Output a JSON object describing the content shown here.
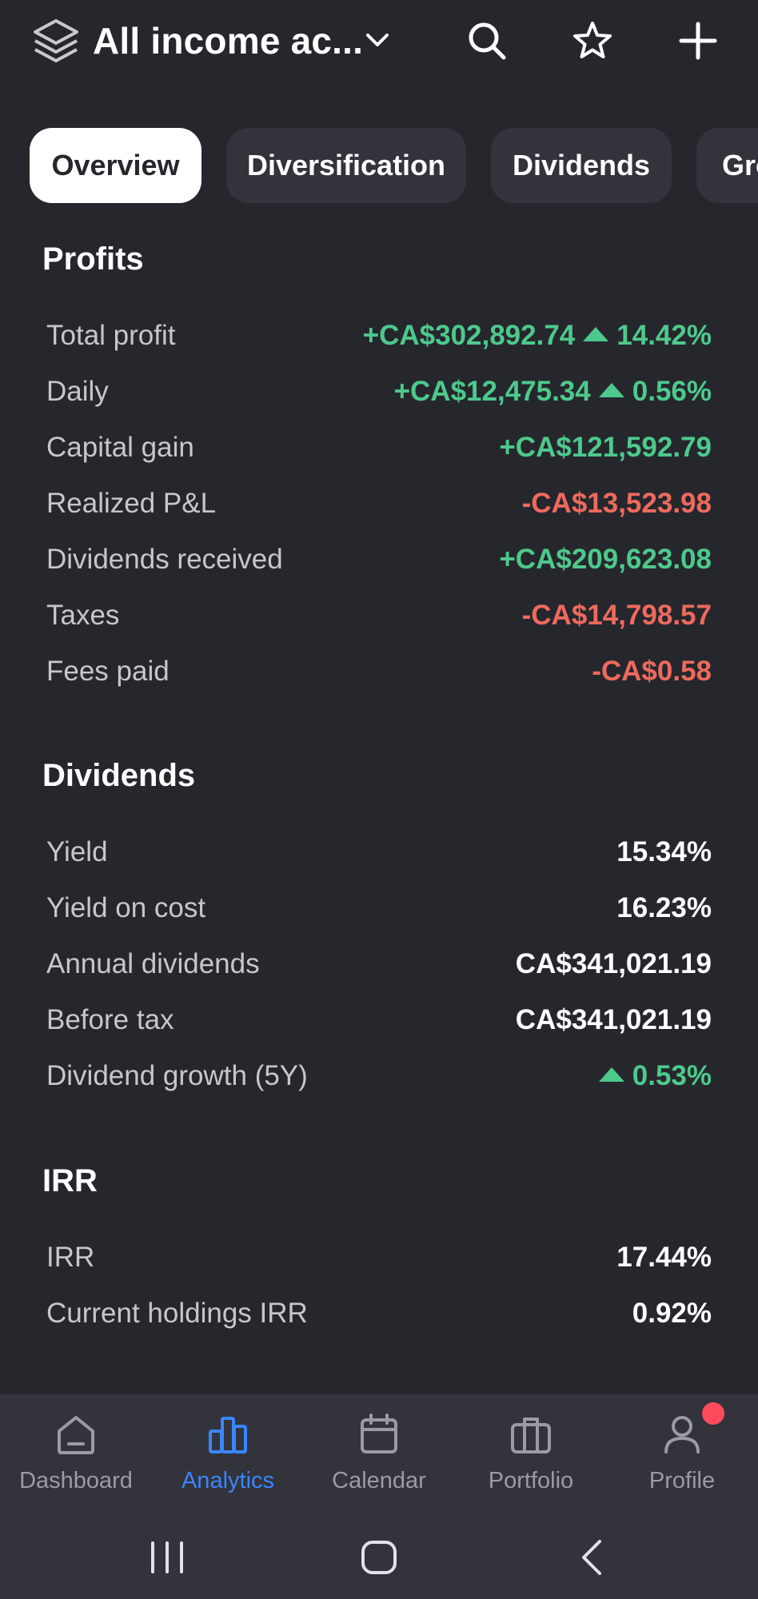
{
  "header": {
    "title": "All income ac...",
    "icons": [
      "layers-icon",
      "chevron-down-icon",
      "search-icon",
      "star-icon",
      "plus-icon"
    ]
  },
  "tabs": [
    {
      "label": "Overview",
      "active": true
    },
    {
      "label": "Diversification",
      "active": false
    },
    {
      "label": "Dividends",
      "active": false
    },
    {
      "label": "Gro",
      "active": false
    }
  ],
  "profits": {
    "title": "Profits",
    "rows": [
      {
        "label": "Total profit",
        "value": "+CA$302,892.74",
        "change": "14.42%",
        "tone": "pos"
      },
      {
        "label": "Daily",
        "value": "+CA$12,475.34",
        "change": "0.56%",
        "tone": "pos"
      },
      {
        "label": "Capital gain",
        "value": "+CA$121,592.79",
        "tone": "pos"
      },
      {
        "label": "Realized P&L",
        "value": "-CA$13,523.98",
        "tone": "neg"
      },
      {
        "label": "Dividends received",
        "value": "+CA$209,623.08",
        "tone": "pos"
      },
      {
        "label": "Taxes",
        "value": "-CA$14,798.57",
        "tone": "neg"
      },
      {
        "label": "Fees paid",
        "value": "-CA$0.58",
        "tone": "neg"
      }
    ]
  },
  "dividends": {
    "title": "Dividends",
    "rows": [
      {
        "label": "Yield",
        "value": "15.34%"
      },
      {
        "label": "Yield on cost",
        "value": "16.23%"
      },
      {
        "label": "Annual dividends",
        "value": "CA$341,021.19"
      },
      {
        "label": "Before tax",
        "value": "CA$341,021.19"
      },
      {
        "label": "Dividend growth (5Y)",
        "value": "0.53%",
        "tone": "pos"
      }
    ]
  },
  "irr": {
    "title": "IRR",
    "rows": [
      {
        "label": "IRR",
        "value": "17.44%"
      },
      {
        "label": "Current holdings IRR",
        "value": "0.92%"
      }
    ]
  },
  "bottom_nav": [
    {
      "label": "Dashboard",
      "icon": "home-icon",
      "active": false
    },
    {
      "label": "Analytics",
      "icon": "bar-chart-icon",
      "active": true
    },
    {
      "label": "Calendar",
      "icon": "calendar-icon",
      "active": false
    },
    {
      "label": "Portfolio",
      "icon": "briefcase-icon",
      "active": false
    },
    {
      "label": "Profile",
      "icon": "user-icon",
      "active": false,
      "badge": true
    }
  ],
  "colors": {
    "background": "#26272d",
    "card": "#32333b",
    "positive": "#4dc98c",
    "negative": "#ee6a5d",
    "accent": "#3a86ff",
    "badge": "#ff4b5c"
  }
}
